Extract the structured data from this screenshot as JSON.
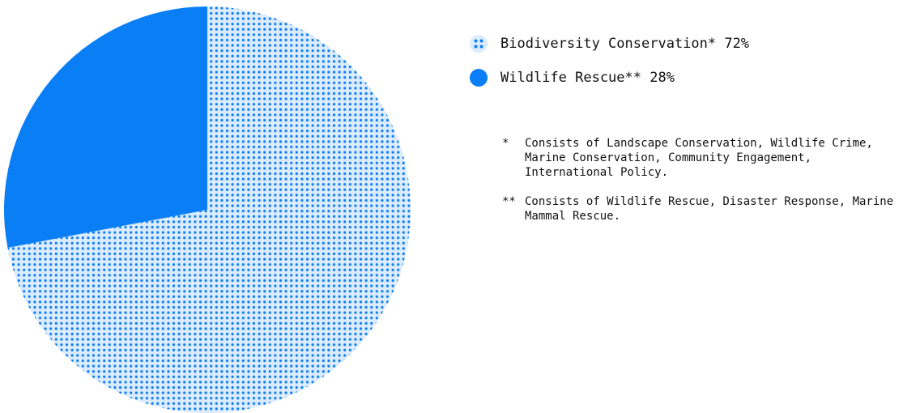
{
  "chart_data": {
    "type": "pie",
    "slices": [
      {
        "label": "Biodiversity Conservation*",
        "value": 72,
        "pattern": "dots",
        "color": "#0a7ff5",
        "background": "#dcebfd"
      },
      {
        "label": "Wildlife Rescue**",
        "value": 28,
        "pattern": "solid",
        "color": "#0a7ff5"
      }
    ],
    "start_angle_deg": 0,
    "direction": "clockwise",
    "legend_placement": "right",
    "legend": [
      {
        "text": "Biodiversity Conservation* 72%"
      },
      {
        "text": "Wildlife Rescue** 28%"
      }
    ],
    "footnotes": [
      {
        "marker": "*",
        "text": "Consists of Landscape Conservation, Wildlife Crime, Marine Conservation, Community Engagement, International Policy."
      },
      {
        "marker": "**",
        "text": "Consists of Wildlife Rescue, Disaster Response, Marine Mammal Rescue."
      }
    ]
  }
}
